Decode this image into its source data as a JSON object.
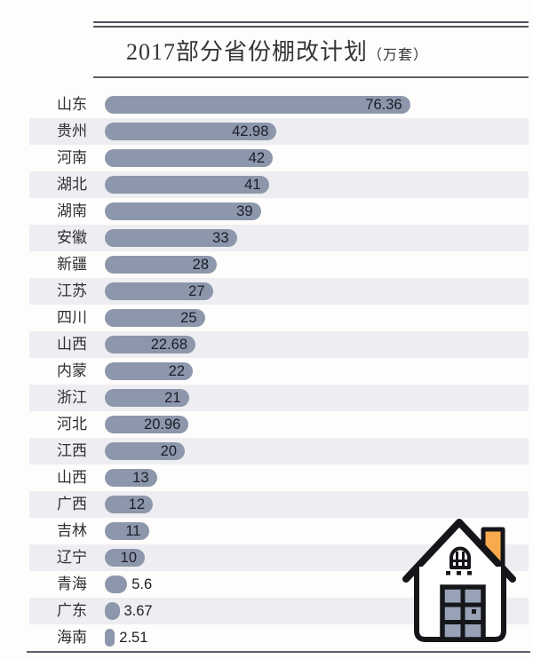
{
  "title": {
    "main": "2017部分省份棚改计划",
    "unit": "（万套）"
  },
  "chart_data": {
    "type": "bar",
    "orientation": "horizontal",
    "title": "2017部分省份棚改计划",
    "unit_label": "万套",
    "xlim": [
      0,
      80
    ],
    "grid": false,
    "legend": "none",
    "categories": [
      "山东",
      "贵州",
      "河南",
      "湖北",
      "湖南",
      "安徽",
      "新疆",
      "江苏",
      "四川",
      "山西",
      "内蒙",
      "浙江",
      "河北",
      "江西",
      "山西",
      "广西",
      "吉林",
      "辽宁",
      "青海",
      "广东",
      "海南"
    ],
    "values": [
      76.36,
      42.98,
      42,
      41,
      39,
      33,
      28,
      27,
      25,
      22.68,
      22,
      21,
      20.96,
      20,
      13,
      12,
      11,
      10,
      5.6,
      3.67,
      2.51
    ]
  },
  "icons": {
    "house": "house-icon"
  },
  "colors": {
    "bar": "#8d97ab",
    "row_stripe": "#eeeef2",
    "rule": "#4c515a",
    "value_text": "#1b1e28",
    "chimney": "#f8ab4d",
    "door_panes": "#98a2b6",
    "icon_outline": "#15161a"
  }
}
